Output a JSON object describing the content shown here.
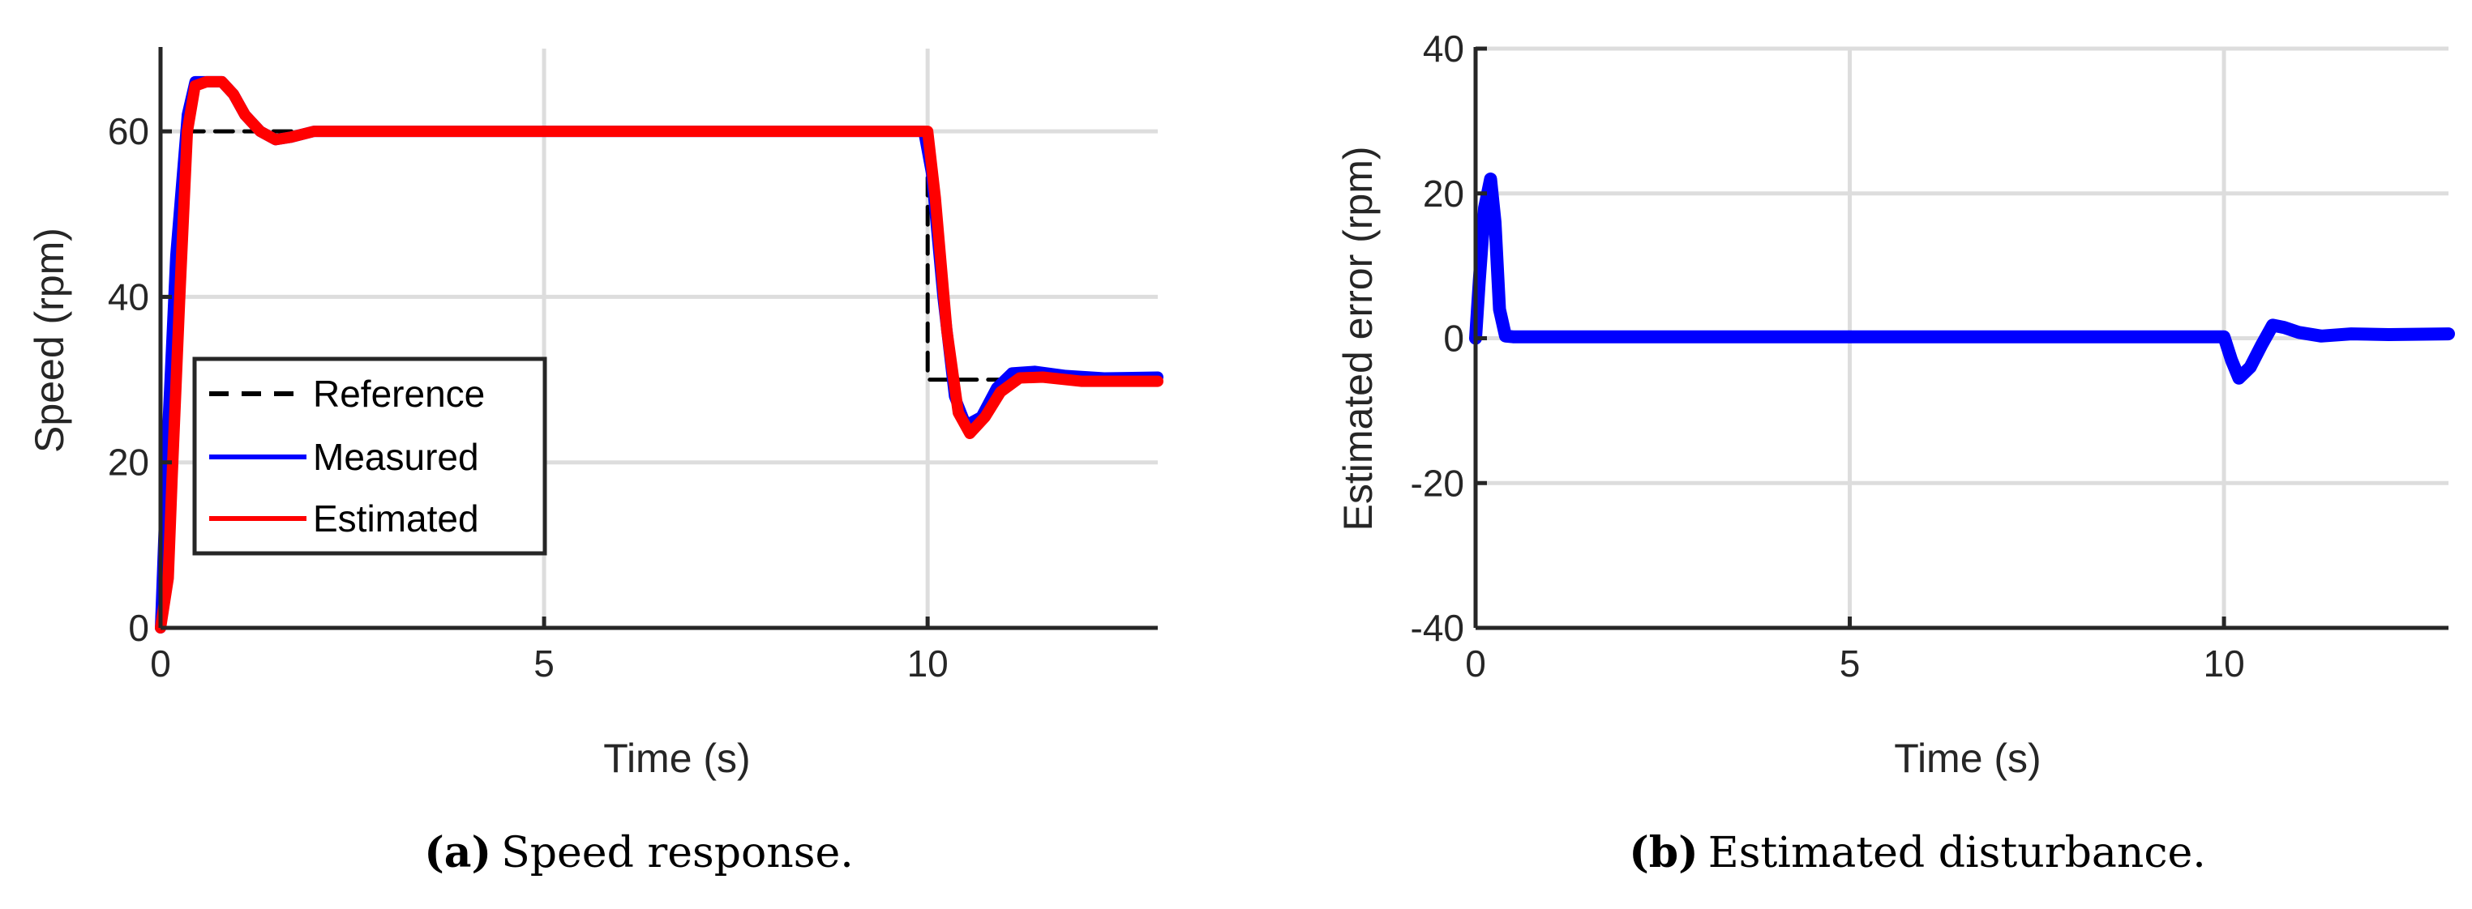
{
  "chart_data": [
    {
      "type": "line",
      "title": "",
      "caption_tag": "(a)",
      "caption_text": "Speed response.",
      "xlabel": "Time (s)",
      "ylabel": "Speed (rpm)",
      "xlim": [
        0,
        13
      ],
      "ylim": [
        0,
        70
      ],
      "xticks": [
        0,
        5,
        10
      ],
      "xtick_labels": [
        "0",
        "5",
        "10"
      ],
      "yticks": [
        0,
        20,
        40,
        60
      ],
      "ytick_labels": [
        "0",
        "20",
        "40",
        "60"
      ],
      "grid": true,
      "legend_position": "middle-left",
      "series": [
        {
          "name": "Reference",
          "style": "dashed",
          "color": "#000000",
          "x": [
            0,
            0.35,
            0.35,
            10.0,
            10.0,
            13.0
          ],
          "y": [
            0,
            60,
            60,
            60,
            30,
            30
          ]
        },
        {
          "name": "Measured",
          "style": "solid",
          "color": "#0000ff",
          "x": [
            0,
            0.1,
            0.2,
            0.35,
            0.45,
            0.6,
            0.8,
            0.95,
            1.1,
            1.3,
            1.5,
            1.7,
            2.0,
            2.5,
            5.0,
            9.95,
            10.05,
            10.2,
            10.35,
            10.5,
            10.7,
            10.9,
            11.1,
            11.4,
            11.8,
            12.3,
            13.0
          ],
          "y": [
            0,
            25,
            45,
            62,
            66,
            66,
            66,
            64.5,
            62,
            60,
            59,
            59.3,
            60,
            60,
            60,
            60,
            55,
            40,
            28,
            24.5,
            25.5,
            29,
            30.8,
            31,
            30.5,
            30.2,
            30.3
          ]
        },
        {
          "name": "Estimated",
          "style": "solid",
          "color": "#ff0000",
          "x": [
            0,
            0.1,
            0.15,
            0.25,
            0.35,
            0.45,
            0.6,
            0.8,
            0.95,
            1.1,
            1.3,
            1.5,
            1.7,
            2.0,
            2.5,
            5.0,
            10.0,
            10.1,
            10.25,
            10.4,
            10.55,
            10.75,
            10.95,
            11.2,
            11.5,
            12.0,
            13.0
          ],
          "y": [
            0,
            6,
            18,
            40,
            60,
            65.5,
            66,
            66,
            64.5,
            62,
            60,
            59,
            59.3,
            60,
            60,
            60,
            60,
            52,
            36,
            26,
            23.5,
            25.5,
            28.5,
            30.2,
            30.3,
            29.8,
            29.8
          ]
        }
      ]
    },
    {
      "type": "line",
      "title": "",
      "caption_tag": "(b)",
      "caption_text": "Estimated disturbance.",
      "xlabel": "Time (s)",
      "ylabel": "Estimated error (rpm)",
      "xlim": [
        0,
        13
      ],
      "ylim": [
        -40,
        40
      ],
      "xticks": [
        0,
        5,
        10
      ],
      "xtick_labels": [
        "0",
        "5",
        "10"
      ],
      "yticks": [
        -40,
        -20,
        0,
        20,
        40
      ],
      "ytick_labels": [
        "-40",
        "-20",
        "0",
        "20",
        "40"
      ],
      "grid": true,
      "series": [
        {
          "name": "Estimated disturbance",
          "style": "solid",
          "color": "#0000ff",
          "x": [
            0,
            0.05,
            0.12,
            0.2,
            0.26,
            0.32,
            0.4,
            0.5,
            1.0,
            5.0,
            10.0,
            10.1,
            10.2,
            10.35,
            10.5,
            10.65,
            10.8,
            11.0,
            11.3,
            11.7,
            12.2,
            13.0
          ],
          "y": [
            0,
            8,
            18,
            22,
            16,
            4,
            0.3,
            0.2,
            0.2,
            0.2,
            0.2,
            -3,
            -5.5,
            -4,
            -1,
            1.8,
            1.5,
            0.8,
            0.3,
            0.6,
            0.5,
            0.6
          ]
        }
      ]
    }
  ]
}
